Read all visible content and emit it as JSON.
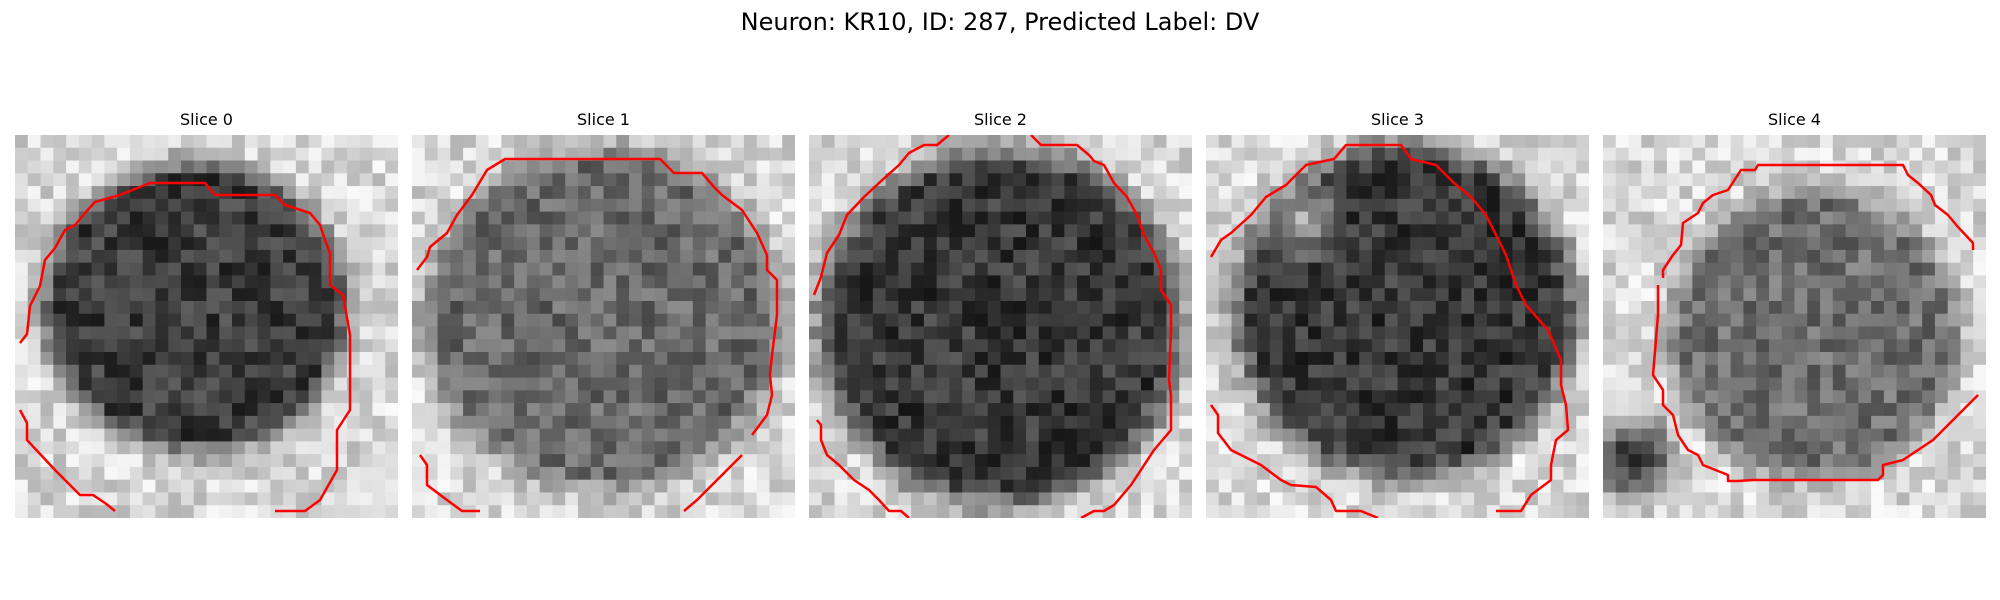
{
  "figure": {
    "title": "Neuron: KR10, ID: 287, Predicted Label: DV"
  },
  "panels": [
    {
      "title": "Slice 0"
    },
    {
      "title": "Slice 1"
    },
    {
      "title": "Slice 2"
    },
    {
      "title": "Slice 3"
    },
    {
      "title": "Slice 4"
    }
  ],
  "colors": {
    "contour": "#ff0000",
    "background": "#ffffff",
    "colormap": "grayscale"
  }
}
